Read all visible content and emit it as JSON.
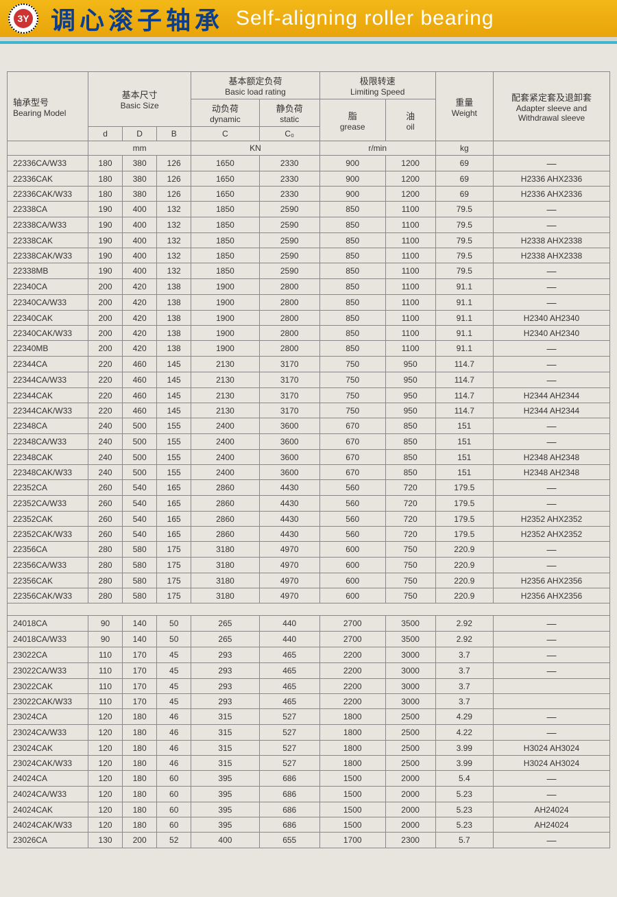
{
  "header": {
    "logo_text": "3Y",
    "title_cn": "调心滚子轴承",
    "title_en": "Self-aligning roller bearing"
  },
  "columns": {
    "model_cn": "轴承型号",
    "model_en": "Bearing Model",
    "basic_size_cn": "基本尺寸",
    "basic_size_en": "Basic Size",
    "d": "d",
    "D": "D",
    "B": "B",
    "load_cn": "基本额定负荷",
    "load_en": "Basic load rating",
    "dynamic_cn": "动负荷",
    "dynamic_en": "dynamic",
    "static_cn": "静负荷",
    "static_en": "static",
    "C": "C",
    "C0": "C₀",
    "speed_cn": "极限转速",
    "speed_en": "Limiting Speed",
    "grease_cn": "脂",
    "grease_en": "grease",
    "oil_cn": "油",
    "oil_en": "oil",
    "weight_cn": "重量",
    "weight_en": "Weight",
    "adapter_cn": "配套紧定套及退卸套",
    "adapter_en1": "Adapter sleeve and",
    "adapter_en2": "Withdrawal sleeve",
    "unit_mm": "mm",
    "unit_kn": "KN",
    "unit_rpm": "r/min",
    "unit_kg": "kg"
  },
  "rows1": [
    {
      "m": "22336CA/W33",
      "d": "180",
      "D": "380",
      "B": "126",
      "C": "1650",
      "C0": "2330",
      "g": "900",
      "o": "1200",
      "w": "69",
      "a": "—"
    },
    {
      "m": "22336CAK",
      "d": "180",
      "D": "380",
      "B": "126",
      "C": "1650",
      "C0": "2330",
      "g": "900",
      "o": "1200",
      "w": "69",
      "a": "H2336   AHX2336"
    },
    {
      "m": "22336CAK/W33",
      "d": "180",
      "D": "380",
      "B": "126",
      "C": "1650",
      "C0": "2330",
      "g": "900",
      "o": "1200",
      "w": "69",
      "a": "H2336   AHX2336"
    },
    {
      "m": "22338CA",
      "d": "190",
      "D": "400",
      "B": "132",
      "C": "1850",
      "C0": "2590",
      "g": "850",
      "o": "1100",
      "w": "79.5",
      "a": "—"
    },
    {
      "m": "22338CA/W33",
      "d": "190",
      "D": "400",
      "B": "132",
      "C": "1850",
      "C0": "2590",
      "g": "850",
      "o": "1100",
      "w": "79.5",
      "a": "—"
    },
    {
      "m": "22338CAK",
      "d": "190",
      "D": "400",
      "B": "132",
      "C": "1850",
      "C0": "2590",
      "g": "850",
      "o": "1100",
      "w": "79.5",
      "a": "H2338   AHX2338"
    },
    {
      "m": "22338CAK/W33",
      "d": "190",
      "D": "400",
      "B": "132",
      "C": "1850",
      "C0": "2590",
      "g": "850",
      "o": "1100",
      "w": "79.5",
      "a": "H2338   AHX2338"
    },
    {
      "m": "22338MB",
      "d": "190",
      "D": "400",
      "B": "132",
      "C": "1850",
      "C0": "2590",
      "g": "850",
      "o": "1100",
      "w": "79.5",
      "a": "—"
    },
    {
      "m": "22340CA",
      "d": "200",
      "D": "420",
      "B": "138",
      "C": "1900",
      "C0": "2800",
      "g": "850",
      "o": "1100",
      "w": "91.1",
      "a": "—"
    },
    {
      "m": "22340CA/W33",
      "d": "200",
      "D": "420",
      "B": "138",
      "C": "1900",
      "C0": "2800",
      "g": "850",
      "o": "1100",
      "w": "91.1",
      "a": "—"
    },
    {
      "m": "22340CAK",
      "d": "200",
      "D": "420",
      "B": "138",
      "C": "1900",
      "C0": "2800",
      "g": "850",
      "o": "1100",
      "w": "91.1",
      "a": "H2340   AH2340"
    },
    {
      "m": "22340CAK/W33",
      "d": "200",
      "D": "420",
      "B": "138",
      "C": "1900",
      "C0": "2800",
      "g": "850",
      "o": "1100",
      "w": "91.1",
      "a": "H2340   AH2340"
    },
    {
      "m": "22340MB",
      "d": "200",
      "D": "420",
      "B": "138",
      "C": "1900",
      "C0": "2800",
      "g": "850",
      "o": "1100",
      "w": "91.1",
      "a": "—"
    },
    {
      "m": "22344CA",
      "d": "220",
      "D": "460",
      "B": "145",
      "C": "2130",
      "C0": "3170",
      "g": "750",
      "o": "950",
      "w": "114.7",
      "a": "—"
    },
    {
      "m": "22344CA/W33",
      "d": "220",
      "D": "460",
      "B": "145",
      "C": "2130",
      "C0": "3170",
      "g": "750",
      "o": "950",
      "w": "114.7",
      "a": "—"
    },
    {
      "m": "22344CAK",
      "d": "220",
      "D": "460",
      "B": "145",
      "C": "2130",
      "C0": "3170",
      "g": "750",
      "o": "950",
      "w": "114.7",
      "a": "H2344   AH2344"
    },
    {
      "m": "22344CAK/W33",
      "d": "220",
      "D": "460",
      "B": "145",
      "C": "2130",
      "C0": "3170",
      "g": "750",
      "o": "950",
      "w": "114.7",
      "a": "H2344   AH2344"
    },
    {
      "m": "22348CA",
      "d": "240",
      "D": "500",
      "B": "155",
      "C": "2400",
      "C0": "3600",
      "g": "670",
      "o": "850",
      "w": "151",
      "a": "—"
    },
    {
      "m": "22348CA/W33",
      "d": "240",
      "D": "500",
      "B": "155",
      "C": "2400",
      "C0": "3600",
      "g": "670",
      "o": "850",
      "w": "151",
      "a": "—"
    },
    {
      "m": "22348CAK",
      "d": "240",
      "D": "500",
      "B": "155",
      "C": "2400",
      "C0": "3600",
      "g": "670",
      "o": "850",
      "w": "151",
      "a": "H2348   AH2348"
    },
    {
      "m": "22348CAK/W33",
      "d": "240",
      "D": "500",
      "B": "155",
      "C": "2400",
      "C0": "3600",
      "g": "670",
      "o": "850",
      "w": "151",
      "a": "H2348   AH2348"
    },
    {
      "m": "22352CA",
      "d": "260",
      "D": "540",
      "B": "165",
      "C": "2860",
      "C0": "4430",
      "g": "560",
      "o": "720",
      "w": "179.5",
      "a": "—"
    },
    {
      "m": "22352CA/W33",
      "d": "260",
      "D": "540",
      "B": "165",
      "C": "2860",
      "C0": "4430",
      "g": "560",
      "o": "720",
      "w": "179.5",
      "a": "—"
    },
    {
      "m": "22352CAK",
      "d": "260",
      "D": "540",
      "B": "165",
      "C": "2860",
      "C0": "4430",
      "g": "560",
      "o": "720",
      "w": "179.5",
      "a": "H2352   AHX2352"
    },
    {
      "m": "22352CAK/W33",
      "d": "260",
      "D": "540",
      "B": "165",
      "C": "2860",
      "C0": "4430",
      "g": "560",
      "o": "720",
      "w": "179.5",
      "a": "H2352   AHX2352"
    },
    {
      "m": "22356CA",
      "d": "280",
      "D": "580",
      "B": "175",
      "C": "3180",
      "C0": "4970",
      "g": "600",
      "o": "750",
      "w": "220.9",
      "a": "—"
    },
    {
      "m": "22356CA/W33",
      "d": "280",
      "D": "580",
      "B": "175",
      "C": "3180",
      "C0": "4970",
      "g": "600",
      "o": "750",
      "w": "220.9",
      "a": "—"
    },
    {
      "m": "22356CAK",
      "d": "280",
      "D": "580",
      "B": "175",
      "C": "3180",
      "C0": "4970",
      "g": "600",
      "o": "750",
      "w": "220.9",
      "a": "H2356   AHX2356"
    },
    {
      "m": "22356CAK/W33",
      "d": "280",
      "D": "580",
      "B": "175",
      "C": "3180",
      "C0": "4970",
      "g": "600",
      "o": "750",
      "w": "220.9",
      "a": "H2356   AHX2356"
    }
  ],
  "rows2": [
    {
      "m": "24018CA",
      "d": "90",
      "D": "140",
      "B": "50",
      "C": "265",
      "C0": "440",
      "g": "2700",
      "o": "3500",
      "w": "2.92",
      "a": "—"
    },
    {
      "m": "24018CA/W33",
      "d": "90",
      "D": "140",
      "B": "50",
      "C": "265",
      "C0": "440",
      "g": "2700",
      "o": "3500",
      "w": "2.92",
      "a": "—"
    },
    {
      "m": "23022CA",
      "d": "110",
      "D": "170",
      "B": "45",
      "C": "293",
      "C0": "465",
      "g": "2200",
      "o": "3000",
      "w": "3.7",
      "a": "—"
    },
    {
      "m": "23022CA/W33",
      "d": "110",
      "D": "170",
      "B": "45",
      "C": "293",
      "C0": "465",
      "g": "2200",
      "o": "3000",
      "w": "3.7",
      "a": "—"
    },
    {
      "m": "23022CAK",
      "d": "110",
      "D": "170",
      "B": "45",
      "C": "293",
      "C0": "465",
      "g": "2200",
      "o": "3000",
      "w": "3.7",
      "a": ""
    },
    {
      "m": "23022CAK/W33",
      "d": "110",
      "D": "170",
      "B": "45",
      "C": "293",
      "C0": "465",
      "g": "2200",
      "o": "3000",
      "w": "3.7",
      "a": ""
    },
    {
      "m": "23024CA",
      "d": "120",
      "D": "180",
      "B": "46",
      "C": "315",
      "C0": "527",
      "g": "1800",
      "o": "2500",
      "w": "4.29",
      "a": "—"
    },
    {
      "m": "23024CA/W33",
      "d": "120",
      "D": "180",
      "B": "46",
      "C": "315",
      "C0": "527",
      "g": "1800",
      "o": "2500",
      "w": "4.22",
      "a": "—"
    },
    {
      "m": "23024CAK",
      "d": "120",
      "D": "180",
      "B": "46",
      "C": "315",
      "C0": "527",
      "g": "1800",
      "o": "2500",
      "w": "3.99",
      "a": "H3024   AH3024"
    },
    {
      "m": "23024CAK/W33",
      "d": "120",
      "D": "180",
      "B": "46",
      "C": "315",
      "C0": "527",
      "g": "1800",
      "o": "2500",
      "w": "3.99",
      "a": "H3024   AH3024"
    },
    {
      "m": "24024CA",
      "d": "120",
      "D": "180",
      "B": "60",
      "C": "395",
      "C0": "686",
      "g": "1500",
      "o": "2000",
      "w": "5.4",
      "a": "—"
    },
    {
      "m": "24024CA/W33",
      "d": "120",
      "D": "180",
      "B": "60",
      "C": "395",
      "C0": "686",
      "g": "1500",
      "o": "2000",
      "w": "5.23",
      "a": "—"
    },
    {
      "m": "24024CAK",
      "d": "120",
      "D": "180",
      "B": "60",
      "C": "395",
      "C0": "686",
      "g": "1500",
      "o": "2000",
      "w": "5.23",
      "a": "AH24024"
    },
    {
      "m": "24024CAK/W33",
      "d": "120",
      "D": "180",
      "B": "60",
      "C": "395",
      "C0": "686",
      "g": "1500",
      "o": "2000",
      "w": "5.23",
      "a": "AH24024"
    },
    {
      "m": "23026CA",
      "d": "130",
      "D": "200",
      "B": "52",
      "C": "400",
      "C0": "655",
      "g": "1700",
      "o": "2300",
      "w": "5.7",
      "a": "—"
    }
  ],
  "styling": {
    "banner_gradient_top": "#f3b818",
    "banner_gradient_bottom": "#e8a409",
    "cyan_stripe": "#3fb4cf",
    "title_cn_color": "#0d3e8c",
    "title_en_color": "#ffffff",
    "page_bg": "#e8e5de",
    "border_color": "#888888",
    "body_fontsize": 12
  }
}
